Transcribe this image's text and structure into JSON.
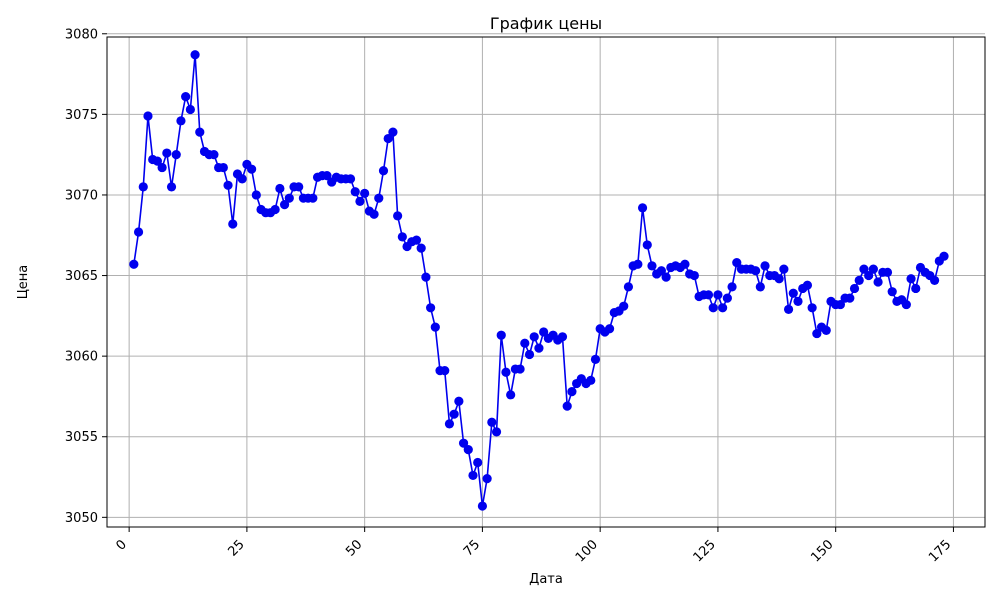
{
  "chart_data": {
    "type": "line",
    "title": "График цены",
    "xlabel": "Дата",
    "ylabel": "Цена",
    "xlim": [
      -4.7,
      181.7
    ],
    "ylim": [
      3049.4,
      3079.8
    ],
    "xticks": [
      0,
      25,
      50,
      75,
      100,
      125,
      150,
      175
    ],
    "yticks": [
      3050,
      3055,
      3060,
      3065,
      3070,
      3075,
      3080
    ],
    "x_tick_rotation": 45,
    "grid": true,
    "legend": "none",
    "colors": {
      "series": "#0000ee",
      "grid": "#b0b0b0",
      "axes": "#000000"
    },
    "series": [
      {
        "marker": "circle",
        "x": [
          1,
          2,
          3,
          4,
          5,
          6,
          7,
          8,
          9,
          10,
          11,
          12,
          13,
          14,
          15,
          16,
          17,
          18,
          19,
          20,
          21,
          22,
          23,
          24,
          25,
          26,
          27,
          28,
          29,
          30,
          31,
          32,
          33,
          34,
          35,
          36,
          37,
          38,
          39,
          40,
          41,
          42,
          43,
          44,
          45,
          46,
          47,
          48,
          49,
          50,
          51,
          52,
          53,
          54,
          55,
          56,
          57,
          58,
          59,
          60,
          61,
          62,
          63,
          64,
          65,
          66,
          67,
          68,
          69,
          70,
          71,
          72,
          73,
          74,
          75,
          76,
          77,
          78,
          79,
          80,
          81,
          82,
          83,
          84,
          85,
          86,
          87,
          88,
          89,
          90,
          91,
          92,
          93,
          94,
          95,
          96,
          97,
          98,
          99,
          100,
          101,
          102,
          103,
          104,
          105,
          106,
          107,
          108,
          109,
          110,
          111,
          112,
          113,
          114,
          115,
          116,
          117,
          118,
          119,
          120,
          121,
          122,
          123,
          124,
          125,
          126,
          127,
          128,
          129,
          130,
          131,
          132,
          133,
          134,
          135,
          136,
          137,
          138,
          139,
          140,
          141,
          142,
          143,
          144,
          145,
          146,
          147,
          148,
          149,
          150,
          151,
          152,
          153,
          154,
          155,
          156,
          157,
          158,
          159,
          160,
          161,
          162,
          163,
          164,
          165,
          166,
          167,
          168,
          169,
          170,
          171,
          172,
          173
        ],
        "values": [
          3065.7,
          3067.7,
          3070.5,
          3074.9,
          3072.2,
          3072.1,
          3071.7,
          3072.6,
          3070.5,
          3072.5,
          3074.6,
          3076.1,
          3075.3,
          3078.7,
          3073.9,
          3072.7,
          3072.5,
          3072.5,
          3071.7,
          3071.7,
          3070.6,
          3068.2,
          3071.3,
          3071.0,
          3071.9,
          3071.6,
          3070.0,
          3069.1,
          3068.9,
          3068.9,
          3069.1,
          3070.4,
          3069.4,
          3069.8,
          3070.5,
          3070.5,
          3069.8,
          3069.8,
          3069.8,
          3071.1,
          3071.2,
          3071.2,
          3070.8,
          3071.1,
          3071.0,
          3071.0,
          3071.0,
          3070.2,
          3069.6,
          3070.1,
          3069.0,
          3068.8,
          3069.8,
          3071.5,
          3073.5,
          3073.9,
          3068.7,
          3067.4,
          3066.8,
          3067.1,
          3067.2,
          3066.7,
          3064.9,
          3063.0,
          3061.8,
          3059.1,
          3059.1,
          3055.8,
          3056.4,
          3057.2,
          3054.6,
          3054.2,
          3052.6,
          3053.4,
          3050.7,
          3052.4,
          3055.9,
          3055.3,
          3061.3,
          3059.0,
          3057.6,
          3059.2,
          3059.2,
          3060.8,
          3060.1,
          3061.2,
          3060.5,
          3061.5,
          3061.1,
          3061.3,
          3061.0,
          3061.2,
          3056.9,
          3057.8,
          3058.3,
          3058.6,
          3058.3,
          3058.5,
          3059.8,
          3061.7,
          3061.5,
          3061.7,
          3062.7,
          3062.8,
          3063.1,
          3064.3,
          3065.6,
          3065.7,
          3069.2,
          3066.9,
          3065.6,
          3065.1,
          3065.3,
          3064.9,
          3065.5,
          3065.6,
          3065.5,
          3065.7,
          3065.1,
          3065.0,
          3063.7,
          3063.8,
          3063.8,
          3063.0,
          3063.8,
          3063.0,
          3063.6,
          3064.3,
          3065.8,
          3065.4,
          3065.4,
          3065.4,
          3065.3,
          3064.3,
          3065.6,
          3065.0,
          3065.0,
          3064.8,
          3065.4,
          3062.9,
          3063.9,
          3063.4,
          3064.2,
          3064.4,
          3063.0,
          3061.4,
          3061.8,
          3061.6,
          3063.4,
          3063.2,
          3063.2,
          3063.6,
          3063.6,
          3064.2,
          3064.7,
          3065.4,
          3065.0,
          3065.4,
          3064.6,
          3065.2,
          3065.2,
          3064.0,
          3063.4,
          3063.5,
          3063.2,
          3064.8,
          3064.2,
          3065.5,
          3065.2,
          3065.0,
          3064.7,
          3065.9,
          3066.2
        ]
      }
    ]
  }
}
